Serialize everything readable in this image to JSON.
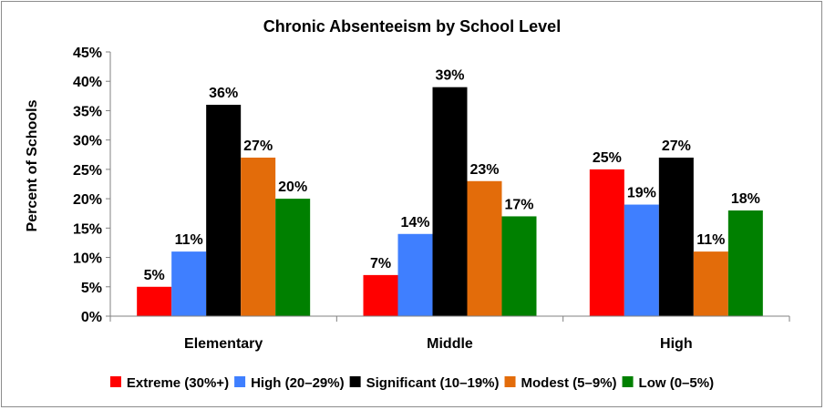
{
  "chart_data": {
    "type": "bar",
    "title": "Chronic Absenteeism by School Level",
    "xlabel": "",
    "ylabel": "Percent of Schools",
    "categories": [
      "Elementary",
      "Middle",
      "High"
    ],
    "ylim": [
      0,
      45
    ],
    "yticks": [
      "0%",
      "5%",
      "10%",
      "15%",
      "20%",
      "25%",
      "30%",
      "35%",
      "40%",
      "45%"
    ],
    "grid": false,
    "legend_position": "bottom",
    "series": [
      {
        "name": "Extreme (30%+)",
        "color": "#ff0000",
        "values": [
          5,
          7,
          25
        ],
        "labels": [
          "5%",
          "7%",
          "25%"
        ]
      },
      {
        "name": "High (20–29%)",
        "color": "#3f7fff",
        "values": [
          11,
          14,
          19
        ],
        "labels": [
          "11%",
          "14%",
          "19%"
        ]
      },
      {
        "name": "Significant (10–19%)",
        "color": "#000000",
        "values": [
          36,
          39,
          27
        ],
        "labels": [
          "36%",
          "39%",
          "27%"
        ]
      },
      {
        "name": "Modest (5–9%)",
        "color": "#e36c0a",
        "values": [
          27,
          23,
          11
        ],
        "labels": [
          "27%",
          "23%",
          "11%"
        ]
      },
      {
        "name": "Low (0–5%)",
        "color": "#008000",
        "values": [
          20,
          17,
          18
        ],
        "labels": [
          "20%",
          "17%",
          "18%"
        ]
      }
    ]
  }
}
